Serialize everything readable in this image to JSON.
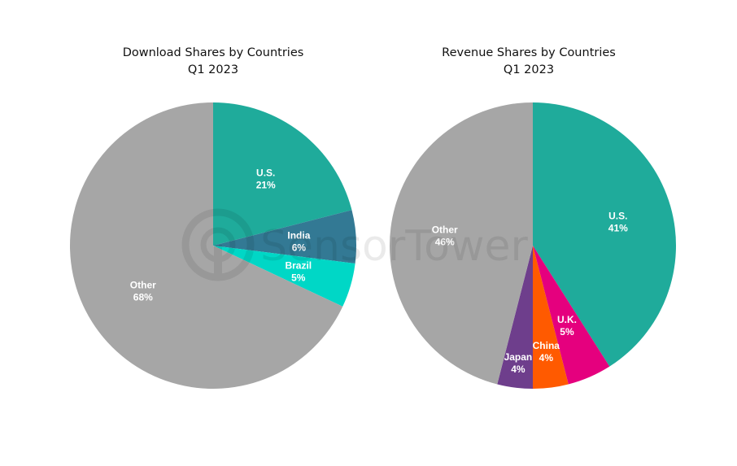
{
  "watermark": {
    "text": "SensorTower",
    "opacity": 0.08
  },
  "chart_data": [
    {
      "type": "pie",
      "title": "Download Shares by Countries",
      "subtitle": "Q1 2023",
      "slices": [
        {
          "label": "U.S.",
          "value": 21,
          "value_label": "21%",
          "color": "#1FAB9B"
        },
        {
          "label": "India",
          "value": 6,
          "value_label": "6%",
          "color": "#337994"
        },
        {
          "label": "Brazil",
          "value": 5,
          "value_label": "5%",
          "color": "#00D7C6"
        },
        {
          "label": "Other",
          "value": 68,
          "value_label": "68%",
          "color": "#A6A6A6"
        }
      ]
    },
    {
      "type": "pie",
      "title": "Revenue Shares by Countries",
      "subtitle": "Q1 2023",
      "slices": [
        {
          "label": "U.S.",
          "value": 41,
          "value_label": "41%",
          "color": "#1FAB9B"
        },
        {
          "label": "U.K.",
          "value": 5,
          "value_label": "5%",
          "color": "#E5007E"
        },
        {
          "label": "China",
          "value": 4,
          "value_label": "4%",
          "color": "#FF5A00"
        },
        {
          "label": "Japan",
          "value": 4,
          "value_label": "4%",
          "color": "#6E3E8C"
        },
        {
          "label": "Other",
          "value": 46,
          "value_label": "46%",
          "color": "#A6A6A6"
        }
      ]
    }
  ]
}
